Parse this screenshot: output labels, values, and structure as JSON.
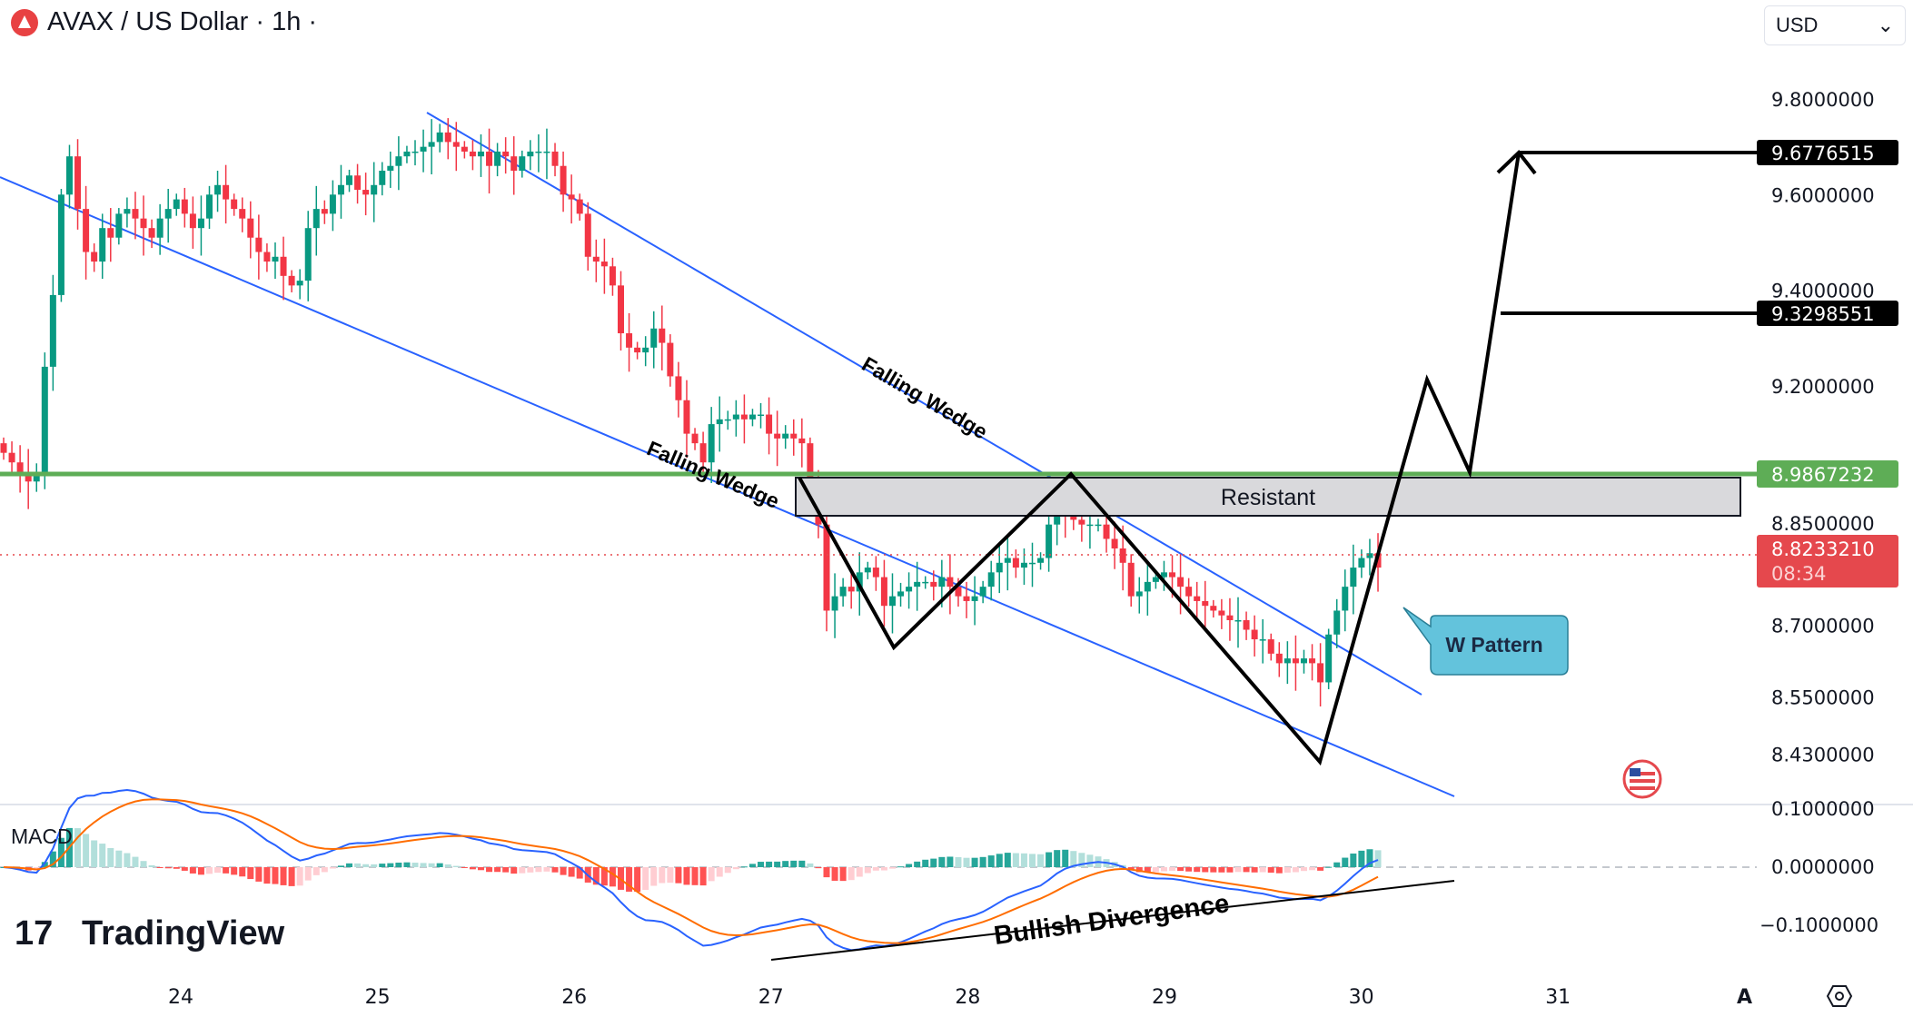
{
  "header": {
    "title": "AVAX / US Dollar · 1h ·",
    "currency": "USD",
    "currency_caret": "⌄"
  },
  "price_axis": {
    "ticks": [
      "9.8000000",
      "9.6000000",
      "9.4000000",
      "9.2000000",
      "8.8500000",
      "8.7000000",
      "8.5500000",
      "8.4300000"
    ],
    "target_high": "9.6776515",
    "target_mid": "9.3298551",
    "resistance_level": "8.9867232",
    "last_price": "8.8233210",
    "countdown": "08:34"
  },
  "macd_axis": {
    "ticks": [
      "0.1000000",
      "0.0000000",
      "−0.1000000"
    ]
  },
  "time_axis": {
    "ticks": [
      "24",
      "25",
      "26",
      "27",
      "28",
      "29",
      "30",
      "31"
    ],
    "auto_scale": "A"
  },
  "annotations": {
    "wedge_upper": "Falling Wedge",
    "wedge_lower": "Falling Wedge",
    "resistant": "Resistant",
    "w_pattern": "W Pattern",
    "divergence": "Bullish Divergence"
  },
  "indicator": {
    "name": "MACD"
  },
  "brand": "TradingView",
  "colors": {
    "up": "#089981",
    "down": "#f23645",
    "wedge": "#2962ff",
    "resistance": "#5ead56",
    "macd": "#2962ff",
    "signal": "#ff6d00",
    "last": "#e5484d"
  },
  "chart_data": {
    "type": "candlestick",
    "title": "AVAX / US Dollar · 1h",
    "interval": "1h",
    "ylim": [
      8.38,
      9.82
    ],
    "y_ticks": [
      9.8,
      9.6,
      9.4,
      9.2,
      8.85,
      8.7,
      8.55,
      8.43
    ],
    "x_ticks": [
      "24",
      "25",
      "26",
      "27",
      "28",
      "29",
      "30",
      "31"
    ],
    "levels": {
      "target_high": 9.6776515,
      "target_mid": 9.3298551,
      "resistance": 8.9867232,
      "last": 8.823321
    },
    "close": [
      9.06,
      9.04,
      9.02,
      9.0,
      9.02,
      9.24,
      9.39,
      9.6,
      9.68,
      9.57,
      9.48,
      9.46,
      9.53,
      9.51,
      9.56,
      9.57,
      9.55,
      9.53,
      9.51,
      9.55,
      9.57,
      9.59,
      9.56,
      9.53,
      9.55,
      9.6,
      9.62,
      9.59,
      9.57,
      9.55,
      9.51,
      9.48,
      9.46,
      9.47,
      9.43,
      9.41,
      9.42,
      9.53,
      9.57,
      9.56,
      9.6,
      9.62,
      9.64,
      9.61,
      9.6,
      9.62,
      9.65,
      9.66,
      9.68,
      9.69,
      9.69,
      9.7,
      9.71,
      9.73,
      9.71,
      9.7,
      9.69,
      9.68,
      9.69,
      9.66,
      9.69,
      9.68,
      9.65,
      9.68,
      9.69,
      9.69,
      9.69,
      9.66,
      9.6,
      9.59,
      9.56,
      9.47,
      9.46,
      9.45,
      9.41,
      9.31,
      9.28,
      9.27,
      9.28,
      9.32,
      9.29,
      9.22,
      9.17,
      9.1,
      9.08,
      9.04,
      9.12,
      9.13,
      9.13,
      9.14,
      9.13,
      9.14,
      9.14,
      9.1,
      9.09,
      9.1,
      9.09,
      9.08,
      9.0,
      8.91,
      8.73,
      8.76,
      8.78,
      8.77,
      8.81,
      8.82,
      8.8,
      8.74,
      8.76,
      8.77,
      8.78,
      8.79,
      8.79,
      8.78,
      8.8,
      8.78,
      8.76,
      8.75,
      8.76,
      8.78,
      8.81,
      8.83,
      8.84,
      8.82,
      8.83,
      8.83,
      8.84,
      8.91,
      8.95,
      8.94,
      8.92,
      8.91,
      8.91,
      8.91,
      8.88,
      8.86,
      8.83,
      8.76,
      8.77,
      8.79,
      8.8,
      8.81,
      8.8,
      8.78,
      8.76,
      8.75,
      8.74,
      8.73,
      8.72,
      8.71,
      8.71,
      8.69,
      8.67,
      8.67,
      8.64,
      8.62,
      8.63,
      8.62,
      8.63,
      8.62,
      8.58,
      8.68,
      8.73,
      8.78,
      8.82,
      8.84,
      8.85,
      8.82
    ]
  }
}
